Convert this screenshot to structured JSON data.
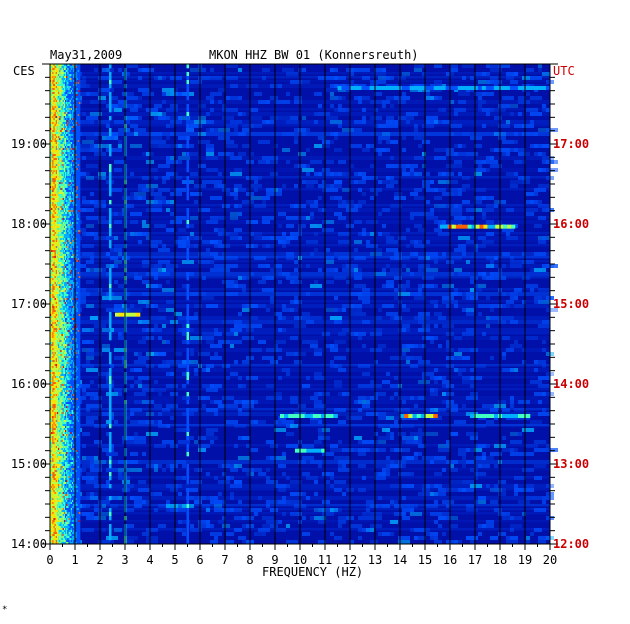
{
  "header": {
    "date": "May31,2009",
    "station": "MKON HHZ BW 01 (Konnersreuth)",
    "left_zone": "CES",
    "right_zone": "UTC"
  },
  "footer": {
    "mark": "*"
  },
  "colors": {
    "background": "#0010a8",
    "gridline": "#000000",
    "utc_labels": "#cc0000",
    "local_labels": "#000000"
  },
  "chart_data": {
    "type": "heatmap",
    "xlabel": "FREQUENCY (HZ)",
    "x_ticks": [
      "0",
      "1",
      "2",
      "3",
      "4",
      "5",
      "6",
      "7",
      "8",
      "9",
      "10",
      "11",
      "12",
      "13",
      "14",
      "15",
      "16",
      "17",
      "18",
      "19",
      "20"
    ],
    "xlim": [
      0,
      20
    ],
    "y_left_ticks": [
      "14:00",
      "15:00",
      "16:00",
      "17:00",
      "18:00",
      "19:00"
    ],
    "y_right_ticks": [
      "12:00",
      "13:00",
      "14:00",
      "15:00",
      "16:00",
      "17:00"
    ],
    "time_range_local": [
      "14:00",
      "20:00"
    ],
    "color_scale": [
      "#0010a8",
      "#0050ff",
      "#00b0ff",
      "#40ffc0",
      "#c0ff40",
      "#ffe000",
      "#ff6000",
      "#e00000"
    ],
    "features": [
      {
        "kind": "broadband_low",
        "freq_range": [
          0,
          1.2
        ],
        "level": "high"
      },
      {
        "kind": "tone",
        "freq": 2.4,
        "level": "medium"
      },
      {
        "kind": "tone",
        "freq": 3.0,
        "level": "medium"
      },
      {
        "kind": "tone",
        "freq": 5.5,
        "level": "low"
      },
      {
        "kind": "event",
        "time_local": "15:36",
        "freq_range": [
          9.2,
          11.5
        ],
        "level": "medium"
      },
      {
        "kind": "event",
        "time_local": "15:36",
        "freq_range": [
          14.0,
          15.5
        ],
        "level": "high"
      },
      {
        "kind": "event",
        "time_local": "15:36",
        "freq_range": [
          16.8,
          19.2
        ],
        "level": "medium"
      },
      {
        "kind": "event",
        "time_local": "17:58",
        "freq_range": [
          15.6,
          18.6
        ],
        "level": "high"
      },
      {
        "kind": "event",
        "time_local": "19:42",
        "freq_range": [
          11.5,
          20.0
        ],
        "level": "low"
      },
      {
        "kind": "event",
        "time_local": "16:52",
        "freq_range": [
          2.6,
          3.6
        ],
        "level": "high"
      },
      {
        "kind": "event",
        "time_local": "15:10",
        "freq_range": [
          9.8,
          11.0
        ],
        "level": "medium"
      }
    ]
  }
}
